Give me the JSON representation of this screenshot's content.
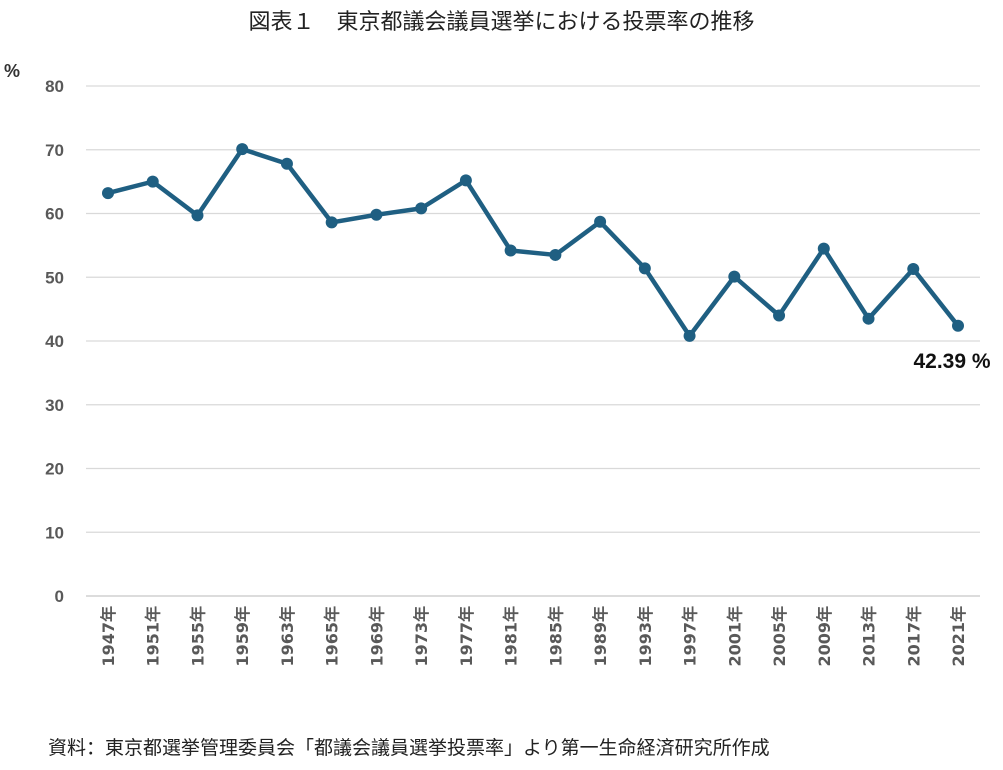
{
  "title": "図表１　東京都議会議員選挙における投票率の推移",
  "source": "資料：東京都選挙管理委員会「都議会議員選挙投票率」より第一生命経済研究所作成",
  "chart_data": {
    "type": "line",
    "categories": [
      "1947年",
      "1951年",
      "1955年",
      "1959年",
      "1963年",
      "1965年",
      "1969年",
      "1973年",
      "1977年",
      "1981年",
      "1985年",
      "1989年",
      "1993年",
      "1997年",
      "2001年",
      "2005年",
      "2009年",
      "2013年",
      "2017年",
      "2021年"
    ],
    "values": [
      63.2,
      65.0,
      59.7,
      70.1,
      67.8,
      58.6,
      59.8,
      60.8,
      65.2,
      54.2,
      53.5,
      58.7,
      51.4,
      40.8,
      50.1,
      44.0,
      54.5,
      43.5,
      51.3,
      42.39
    ],
    "ylabel": "%",
    "ylim": [
      0,
      80
    ],
    "yticks": [
      0,
      10,
      20,
      30,
      40,
      50,
      60,
      70,
      80
    ],
    "grid": true,
    "line_color": "#1f5f82",
    "annotation": "42.39 %"
  }
}
